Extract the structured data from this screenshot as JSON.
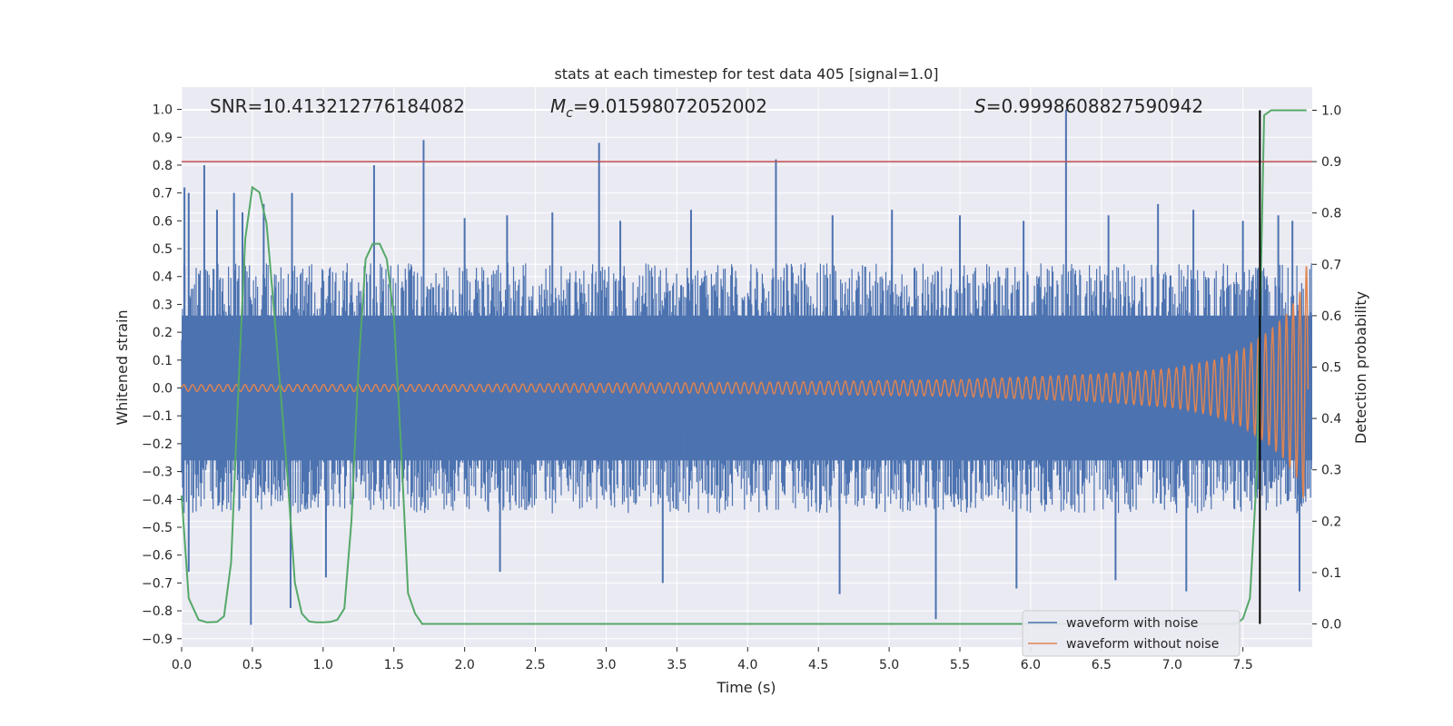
{
  "chart_data": {
    "type": "line",
    "title": "stats at each timestep for test data 405 [signal=1.0]",
    "xlabel": "Time (s)",
    "ylabel": "Whitened strain",
    "y2label": "Detection probability",
    "xlim": [
      0.0,
      7.99
    ],
    "ylim": [
      -0.93,
      1.08
    ],
    "y2lim": [
      -0.045,
      1.045
    ],
    "x_ticks": [
      "0.0",
      "0.5",
      "1.0",
      "1.5",
      "2.0",
      "2.5",
      "3.0",
      "3.5",
      "4.0",
      "4.5",
      "5.0",
      "5.5",
      "6.0",
      "6.5",
      "7.0",
      "7.5"
    ],
    "y_ticks": [
      "1.0",
      "0.9",
      "0.8",
      "0.7",
      "0.6",
      "0.5",
      "0.4",
      "0.3",
      "0.2",
      "0.1",
      "0.0",
      "−0.1",
      "−0.2",
      "−0.3",
      "−0.4",
      "−0.5",
      "−0.6",
      "−0.7",
      "−0.8",
      "−0.9"
    ],
    "y2_ticks": [
      "1.0",
      "0.9",
      "0.8",
      "0.7",
      "0.6",
      "0.5",
      "0.4",
      "0.3",
      "0.2",
      "0.1",
      "0.0"
    ],
    "annotations": {
      "snr": "SNR=10.413212776184082",
      "mc": "=9.01598072052002",
      "s": "=0.9998608827590942"
    },
    "threshold_probability": 0.9,
    "merger_time": 7.62,
    "grid": true,
    "legend_placement": "lower-right",
    "series": [
      {
        "name": "waveform with noise",
        "color": "#4c72b0",
        "axis": "left",
        "spikes": [
          [
            0.02,
            0.72
          ],
          [
            0.05,
            0.7
          ],
          [
            0.16,
            0.8
          ],
          [
            0.25,
            0.64
          ],
          [
            0.37,
            0.7
          ],
          [
            0.43,
            0.63
          ],
          [
            0.58,
            0.66
          ],
          [
            0.78,
            0.7
          ],
          [
            1.36,
            0.8
          ],
          [
            1.71,
            0.89
          ],
          [
            2.0,
            0.61
          ],
          [
            2.3,
            0.62
          ],
          [
            2.62,
            0.63
          ],
          [
            2.95,
            0.88
          ],
          [
            3.1,
            0.6
          ],
          [
            3.6,
            0.64
          ],
          [
            4.2,
            0.82
          ],
          [
            4.6,
            0.62
          ],
          [
            5.02,
            0.64
          ],
          [
            5.5,
            0.62
          ],
          [
            5.95,
            0.6
          ],
          [
            6.25,
            1.0
          ],
          [
            6.55,
            0.62
          ],
          [
            6.9,
            0.66
          ],
          [
            7.15,
            0.64
          ],
          [
            7.5,
            0.6
          ],
          [
            7.75,
            0.62
          ],
          [
            7.85,
            0.6
          ]
        ],
        "neg_spikes": [
          [
            0.05,
            -0.66
          ],
          [
            0.49,
            -0.85
          ],
          [
            0.77,
            -0.79
          ],
          [
            1.02,
            -0.68
          ],
          [
            2.25,
            -0.66
          ],
          [
            3.4,
            -0.7
          ],
          [
            4.65,
            -0.74
          ],
          [
            5.33,
            -0.83
          ],
          [
            5.9,
            -0.72
          ],
          [
            6.6,
            -0.69
          ],
          [
            7.1,
            -0.73
          ],
          [
            7.9,
            -0.73
          ]
        ],
        "band": [
          -0.45,
          0.45
        ]
      },
      {
        "name": "waveform without noise",
        "color": "#dd8452",
        "axis": "left",
        "amplitude_envelope": [
          [
            0.0,
            0.012
          ],
          [
            2.0,
            0.013
          ],
          [
            4.0,
            0.02
          ],
          [
            5.5,
            0.03
          ],
          [
            6.5,
            0.05
          ],
          [
            7.0,
            0.07
          ],
          [
            7.3,
            0.1
          ],
          [
            7.5,
            0.14
          ],
          [
            7.65,
            0.19
          ],
          [
            7.8,
            0.26
          ],
          [
            7.9,
            0.34
          ],
          [
            7.95,
            0.44
          ]
        ]
      },
      {
        "name": "detection probability",
        "color": "#55a868",
        "axis": "right",
        "x": [
          0.0,
          0.05,
          0.12,
          0.18,
          0.25,
          0.3,
          0.35,
          0.4,
          0.45,
          0.5,
          0.55,
          0.6,
          0.65,
          0.7,
          0.75,
          0.8,
          0.85,
          0.9,
          0.95,
          1.0,
          1.05,
          1.1,
          1.15,
          1.2,
          1.25,
          1.3,
          1.35,
          1.4,
          1.45,
          1.5,
          1.55,
          1.6,
          1.65,
          1.7,
          1.75,
          1.8,
          2.0,
          3.0,
          4.0,
          5.0,
          6.0,
          7.0,
          7.45,
          7.5,
          7.55,
          7.6,
          7.65,
          7.7,
          7.75,
          7.8,
          7.9,
          7.95
        ],
        "values": [
          0.25,
          0.05,
          0.008,
          0.003,
          0.004,
          0.015,
          0.12,
          0.45,
          0.75,
          0.85,
          0.84,
          0.78,
          0.62,
          0.45,
          0.28,
          0.08,
          0.02,
          0.005,
          0.003,
          0.003,
          0.004,
          0.008,
          0.03,
          0.2,
          0.5,
          0.71,
          0.74,
          0.74,
          0.71,
          0.6,
          0.35,
          0.06,
          0.02,
          0.0,
          0.0,
          0.0,
          0.0,
          0.0,
          0.0,
          0.0,
          0.0,
          0.0,
          0.0,
          0.01,
          0.05,
          0.3,
          0.99,
          1.0,
          1.0,
          1.0,
          1.0,
          1.0
        ]
      }
    ]
  }
}
